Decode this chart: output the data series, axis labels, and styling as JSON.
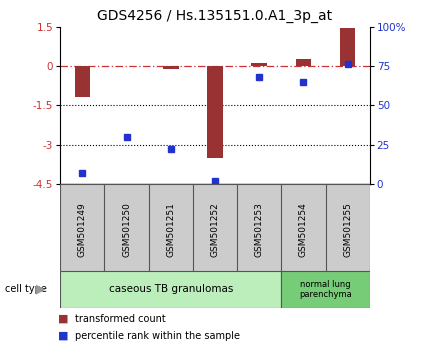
{
  "title": "GDS4256 / Hs.135151.0.A1_3p_at",
  "samples": [
    "GSM501249",
    "GSM501250",
    "GSM501251",
    "GSM501252",
    "GSM501253",
    "GSM501254",
    "GSM501255"
  ],
  "transformed_count": [
    -1.2,
    -0.02,
    -0.12,
    -3.5,
    0.1,
    0.27,
    1.45
  ],
  "percentile_rank": [
    7,
    30,
    22,
    2,
    68,
    65,
    76
  ],
  "ylim_left": [
    -4.5,
    1.5
  ],
  "ylim_right": [
    0,
    100
  ],
  "yticks_left": [
    1.5,
    0,
    -1.5,
    -3.0,
    -4.5
  ],
  "yticks_right": [
    0,
    25,
    50,
    75,
    100
  ],
  "cell_type_groups": [
    {
      "label": "caseous TB granulomas",
      "start": 0,
      "end": 5,
      "color": "#bbeebb"
    },
    {
      "label": "normal lung\nparenchyma",
      "start": 5,
      "end": 7,
      "color": "#77cc77"
    }
  ],
  "bar_color": "#993333",
  "dot_color": "#2233cc",
  "ref_line_color": "#cc3333",
  "dotted_line_color": "#000000",
  "ref_line_y": 0,
  "dotted_lines": [
    -1.5,
    -3.0
  ],
  "background_color": "#ffffff",
  "plot_bg": "#ffffff",
  "sample_label_bg": "#cccccc",
  "legend_items": [
    {
      "color": "#993333",
      "label": "transformed count"
    },
    {
      "color": "#2233cc",
      "label": "percentile rank within the sample"
    }
  ],
  "cell_type_label": "cell type",
  "title_fontsize": 10,
  "tick_fontsize": 7.5,
  "sample_fontsize": 6.5,
  "cell_type_fontsize": 7.5,
  "legend_fontsize": 7,
  "bar_width": 0.35
}
